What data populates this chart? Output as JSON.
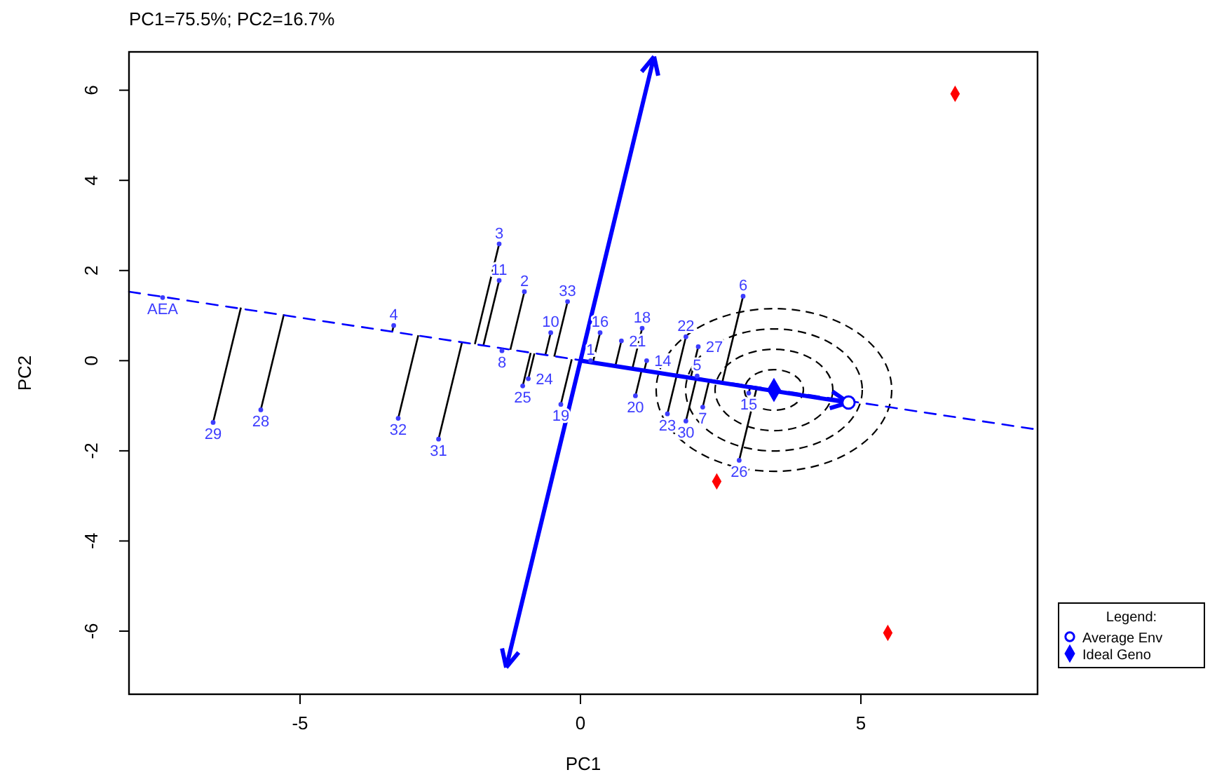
{
  "chart_data": {
    "type": "scatter",
    "subtitle": "PC1=75.5%; PC2=16.7%",
    "xlabel": "PC1",
    "ylabel": "PC2",
    "xlim": [
      -8.05,
      8.15
    ],
    "ylim": [
      -7.4,
      6.85
    ],
    "xticks": [
      -5,
      0,
      5
    ],
    "yticks": [
      -6,
      -4,
      -2,
      0,
      2,
      4,
      6
    ],
    "grid": false,
    "legend": "bottom right",
    "legend_title": "Legend:",
    "series": [
      {
        "type": "line",
        "color": "#0000ff",
        "line_style": "dashed",
        "x": [
          -8.05,
          8.15
        ],
        "values": [
          1.53,
          -1.53
        ]
      },
      {
        "color": "#3c3cff",
        "marker": "circle",
        "x": [
          -1.45,
          -1.45,
          -1.0,
          -0.23,
          -0.53,
          0.35,
          1.1,
          0.73,
          1.18,
          0.18,
          -3.33,
          -1.4,
          -0.93,
          -1.03,
          -0.35,
          -6.55,
          -5.7,
          -3.25,
          -2.53,
          0.98,
          1.88,
          2.1,
          2.08,
          2.18,
          1.55,
          1.88,
          2.9,
          3.0,
          2.83,
          -7.45
        ],
        "values": [
          2.59,
          1.78,
          1.53,
          1.31,
          0.62,
          0.62,
          0.72,
          0.44,
          0.0,
          0.0,
          0.78,
          0.22,
          -0.4,
          -0.56,
          -0.97,
          -1.37,
          -1.09,
          -1.28,
          -1.74,
          -0.78,
          0.53,
          0.31,
          -0.34,
          -1.03,
          -1.18,
          -1.34,
          1.43,
          -0.72,
          -2.21,
          1.4
        ]
      },
      {
        "color": "#ff0000",
        "marker": "diamond",
        "x": [
          6.68,
          2.43,
          5.48
        ],
        "values": [
          5.92,
          -2.68,
          -6.04
        ]
      },
      {
        "name": "Average Env",
        "color": "#0000ff",
        "marker": "circle",
        "x": [
          4.78
        ],
        "values": [
          -0.93
        ]
      },
      {
        "name": "Ideal Geno",
        "color": "#0000ff",
        "marker": "diamond",
        "x": [
          3.45
        ],
        "values": [
          -0.65
        ]
      }
    ],
    "annotations": [
      {
        "text": "3",
        "x": -1.45,
        "y": 2.59
      },
      {
        "text": "11",
        "x": -1.45,
        "y": 1.78
      },
      {
        "text": "2",
        "x": -1.0,
        "y": 1.53
      },
      {
        "text": "33",
        "x": -0.23,
        "y": 1.31
      },
      {
        "text": "10",
        "x": -0.53,
        "y": 0.62
      },
      {
        "text": "16",
        "x": 0.35,
        "y": 0.62
      },
      {
        "text": "18",
        "x": 1.1,
        "y": 0.72
      },
      {
        "text": "21",
        "x": 0.73,
        "y": 0.44
      },
      {
        "text": "14",
        "x": 1.18,
        "y": 0.0
      },
      {
        "text": "1",
        "x": 0.18,
        "y": 0.0
      },
      {
        "text": "4",
        "x": -3.33,
        "y": 0.78
      },
      {
        "text": "8",
        "x": -1.4,
        "y": 0.22
      },
      {
        "text": "24",
        "x": -0.93,
        "y": -0.4
      },
      {
        "text": "25",
        "x": -1.03,
        "y": -0.56
      },
      {
        "text": "19",
        "x": -0.35,
        "y": -0.97
      },
      {
        "text": "29",
        "x": -6.55,
        "y": -1.37
      },
      {
        "text": "28",
        "x": -5.7,
        "y": -1.09
      },
      {
        "text": "32",
        "x": -3.25,
        "y": -1.28
      },
      {
        "text": "31",
        "x": -2.53,
        "y": -1.74
      },
      {
        "text": "20",
        "x": 0.98,
        "y": -0.78
      },
      {
        "text": "22",
        "x": 1.88,
        "y": 0.53
      },
      {
        "text": "27",
        "x": 2.1,
        "y": 0.31
      },
      {
        "text": "5",
        "x": 2.08,
        "y": -0.34
      },
      {
        "text": "7",
        "x": 2.18,
        "y": -1.03
      },
      {
        "text": "23",
        "x": 1.55,
        "y": -1.18
      },
      {
        "text": "30",
        "x": 1.88,
        "y": -1.34
      },
      {
        "text": "6",
        "x": 2.9,
        "y": 1.43
      },
      {
        "text": "15",
        "x": 3.0,
        "y": -0.72
      },
      {
        "text": "26",
        "x": 2.83,
        "y": -2.21
      },
      {
        "text": "AEA",
        "x": -7.45,
        "y": 1.4
      }
    ]
  }
}
